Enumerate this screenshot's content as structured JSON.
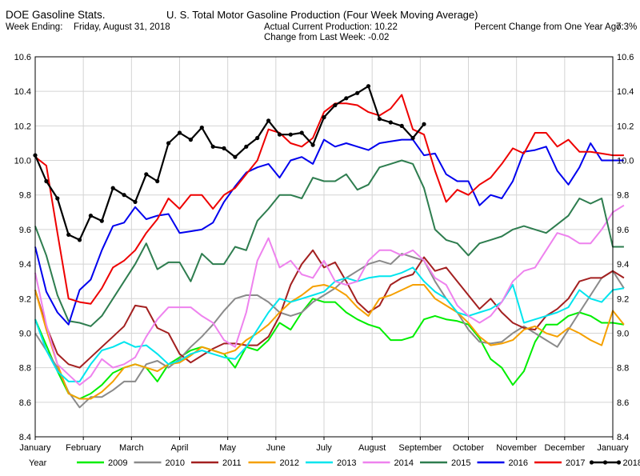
{
  "header": {
    "app_title": "DOE Gasoline Stats.",
    "week_ending_label": "Week Ending:",
    "week_ending_value": "Friday, August 31, 2018",
    "chart_title": "U. S. Total Motor Gasoline Production (Four Week Moving Average)",
    "actual_production": "Actual Current Production: 10.22",
    "change_last_week": "Change from Last Week: -0.02",
    "pct_change_label": "Percent Change from One Year Ago:",
    "pct_change_value": "7.3%"
  },
  "chart_data": {
    "type": "line",
    "title": "U. S. Total Motor Gasoline Production (Four Week Moving Average)",
    "xlabel": "",
    "ylabel": "",
    "x_range": [
      0,
      12
    ],
    "ylim": [
      8.4,
      10.6
    ],
    "y_ticks": [
      "8.4",
      "8.6",
      "8.8",
      "9.0",
      "9.2",
      "9.4",
      "9.6",
      "9.8",
      "10.0",
      "10.2",
      "10.4",
      "10.6"
    ],
    "x_tick_labels": [
      "January",
      "February",
      "March",
      "April",
      "May",
      "June",
      "July",
      "August",
      "September",
      "October",
      "November",
      "December",
      "January"
    ],
    "grid": true,
    "legend_title": "Year",
    "legend_position": "bottom",
    "series": [
      {
        "name": "2009",
        "color": "#00ee00",
        "markers": false,
        "values": [
          9.08,
          8.93,
          8.78,
          8.65,
          8.62,
          8.65,
          8.7,
          8.77,
          8.8,
          8.82,
          8.8,
          8.72,
          8.82,
          8.86,
          8.9,
          8.92,
          8.9,
          8.88,
          8.8,
          8.92,
          8.9,
          8.96,
          9.06,
          9.02,
          9.12,
          9.2,
          9.18,
          9.18,
          9.12,
          9.08,
          9.05,
          9.03,
          8.96,
          8.96,
          8.98,
          9.08,
          9.1,
          9.08,
          9.07,
          9.05,
          8.97,
          8.85,
          8.8,
          8.7,
          8.78,
          8.95,
          9.05,
          9.05,
          9.1,
          9.12,
          9.1,
          9.06,
          9.06,
          9.05
        ]
      },
      {
        "name": "2010",
        "color": "#8a8a8a",
        "markers": false,
        "values": [
          9.0,
          8.9,
          8.8,
          8.66,
          8.57,
          8.63,
          8.63,
          8.67,
          8.72,
          8.72,
          8.82,
          8.84,
          8.8,
          8.85,
          8.92,
          8.98,
          9.05,
          9.13,
          9.2,
          9.22,
          9.22,
          9.18,
          9.12,
          9.1,
          9.12,
          9.18,
          9.22,
          9.26,
          9.32,
          9.36,
          9.4,
          9.42,
          9.4,
          9.46,
          9.44,
          9.42,
          9.3,
          9.2,
          9.12,
          9.02,
          8.95,
          8.94,
          8.95,
          9.0,
          9.04,
          9.0,
          8.96,
          8.92,
          9.02,
          9.12,
          9.22,
          9.32,
          9.36,
          9.26
        ]
      },
      {
        "name": "2011",
        "color": "#a32020",
        "markers": false,
        "values": [
          9.25,
          9.04,
          8.88,
          8.82,
          8.8,
          8.86,
          8.92,
          8.98,
          9.04,
          9.16,
          9.15,
          9.03,
          9.0,
          8.88,
          8.83,
          8.87,
          8.91,
          8.94,
          8.94,
          8.93,
          8.93,
          8.98,
          9.1,
          9.28,
          9.4,
          9.48,
          9.38,
          9.41,
          9.3,
          9.18,
          9.12,
          9.16,
          9.28,
          9.32,
          9.34,
          9.44,
          9.36,
          9.38,
          9.3,
          9.22,
          9.14,
          9.2,
          9.12,
          9.06,
          9.03,
          9.02,
          9.1,
          9.14,
          9.2,
          9.3,
          9.32,
          9.32,
          9.36,
          9.32
        ]
      },
      {
        "name": "2012",
        "color": "#f5a000",
        "markers": false,
        "values": [
          9.25,
          9.02,
          8.82,
          8.65,
          8.62,
          8.62,
          8.66,
          8.72,
          8.8,
          8.82,
          8.8,
          8.78,
          8.82,
          8.83,
          8.87,
          8.92,
          8.9,
          8.88,
          8.9,
          8.96,
          9.0,
          9.05,
          9.12,
          9.18,
          9.22,
          9.27,
          9.28,
          9.26,
          9.22,
          9.15,
          9.1,
          9.2,
          9.22,
          9.25,
          9.28,
          9.28,
          9.2,
          9.16,
          9.12,
          9.06,
          8.98,
          8.93,
          8.94,
          8.96,
          9.02,
          9.04,
          9.0,
          8.98,
          9.03,
          9.0,
          8.96,
          8.93,
          9.13,
          9.05
        ]
      },
      {
        "name": "2013",
        "color": "#00e5ee",
        "markers": false,
        "values": [
          9.08,
          8.9,
          8.78,
          8.72,
          8.72,
          8.82,
          8.9,
          8.92,
          8.95,
          8.92,
          8.93,
          8.88,
          8.82,
          8.84,
          8.88,
          8.9,
          8.88,
          8.86,
          8.85,
          8.92,
          9.02,
          9.12,
          9.2,
          9.18,
          9.2,
          9.22,
          9.24,
          9.3,
          9.32,
          9.3,
          9.32,
          9.33,
          9.33,
          9.35,
          9.38,
          9.3,
          9.24,
          9.2,
          9.12,
          9.1,
          9.12,
          9.14,
          9.18,
          9.28,
          9.06,
          9.08,
          9.1,
          9.12,
          9.15,
          9.25,
          9.2,
          9.18,
          9.25,
          9.26
        ]
      },
      {
        "name": "2014",
        "color": "#ee82ee",
        "markers": false,
        "values": [
          9.35,
          9.05,
          8.82,
          8.76,
          8.7,
          8.75,
          8.85,
          8.8,
          8.82,
          8.86,
          8.98,
          9.08,
          9.15,
          9.15,
          9.15,
          9.1,
          9.06,
          8.96,
          8.92,
          9.12,
          9.42,
          9.55,
          9.38,
          9.42,
          9.34,
          9.32,
          9.42,
          9.3,
          9.28,
          9.3,
          9.42,
          9.48,
          9.48,
          9.45,
          9.48,
          9.42,
          9.32,
          9.28,
          9.16,
          9.1,
          9.06,
          9.1,
          9.18,
          9.3,
          9.36,
          9.38,
          9.48,
          9.58,
          9.56,
          9.52,
          9.52,
          9.6,
          9.7,
          9.74
        ]
      },
      {
        "name": "2015",
        "color": "#2e7d4f",
        "markers": false,
        "values": [
          9.62,
          9.45,
          9.22,
          9.07,
          9.06,
          9.04,
          9.1,
          9.2,
          9.3,
          9.4,
          9.52,
          9.37,
          9.41,
          9.41,
          9.3,
          9.46,
          9.4,
          9.4,
          9.5,
          9.48,
          9.65,
          9.72,
          9.8,
          9.8,
          9.78,
          9.9,
          9.88,
          9.88,
          9.92,
          9.83,
          9.86,
          9.96,
          9.98,
          10.0,
          9.98,
          9.84,
          9.6,
          9.54,
          9.52,
          9.45,
          9.52,
          9.54,
          9.56,
          9.6,
          9.62,
          9.6,
          9.58,
          9.63,
          9.68,
          9.78,
          9.75,
          9.78,
          9.5,
          9.5
        ]
      },
      {
        "name": "2016",
        "color": "#0000ee",
        "markers": false,
        "values": [
          9.5,
          9.24,
          9.12,
          9.05,
          9.25,
          9.31,
          9.48,
          9.62,
          9.64,
          9.73,
          9.66,
          9.68,
          9.69,
          9.58,
          9.59,
          9.6,
          9.64,
          9.76,
          9.85,
          9.93,
          9.96,
          9.98,
          9.9,
          10.0,
          10.02,
          9.98,
          10.12,
          10.08,
          10.1,
          10.08,
          10.06,
          10.1,
          10.11,
          10.12,
          10.12,
          10.03,
          10.04,
          9.92,
          9.88,
          9.88,
          9.74,
          9.8,
          9.78,
          9.88,
          10.05,
          10.06,
          10.08,
          9.94,
          9.86,
          9.96,
          10.1,
          10.0,
          10.0,
          10.0
        ]
      },
      {
        "name": "2017",
        "color": "#ee0000",
        "markers": false,
        "values": [
          10.02,
          9.97,
          9.58,
          9.2,
          9.18,
          9.17,
          9.26,
          9.38,
          9.42,
          9.48,
          9.58,
          9.66,
          9.78,
          9.72,
          9.8,
          9.8,
          9.72,
          9.8,
          9.84,
          9.92,
          10.0,
          10.18,
          10.16,
          10.1,
          10.08,
          10.13,
          10.28,
          10.33,
          10.33,
          10.32,
          10.28,
          10.26,
          10.3,
          10.38,
          10.18,
          10.15,
          9.94,
          9.76,
          9.83,
          9.8,
          9.86,
          9.9,
          9.98,
          10.07,
          10.04,
          10.16,
          10.16,
          10.08,
          10.12,
          10.05,
          10.05,
          10.04,
          10.03,
          10.03
        ]
      },
      {
        "name": "2018",
        "color": "#000000",
        "markers": true,
        "values": [
          10.03,
          9.88,
          9.78,
          9.57,
          9.54,
          9.68,
          9.65,
          9.84,
          9.8,
          9.76,
          9.92,
          9.88,
          10.1,
          10.16,
          10.12,
          10.19,
          10.08,
          10.07,
          10.02,
          10.08,
          10.13,
          10.23,
          10.15,
          10.15,
          10.16,
          10.09,
          10.25,
          10.32,
          10.36,
          10.39,
          10.43,
          10.24,
          10.22,
          10.2,
          10.13,
          10.21
        ]
      }
    ]
  }
}
